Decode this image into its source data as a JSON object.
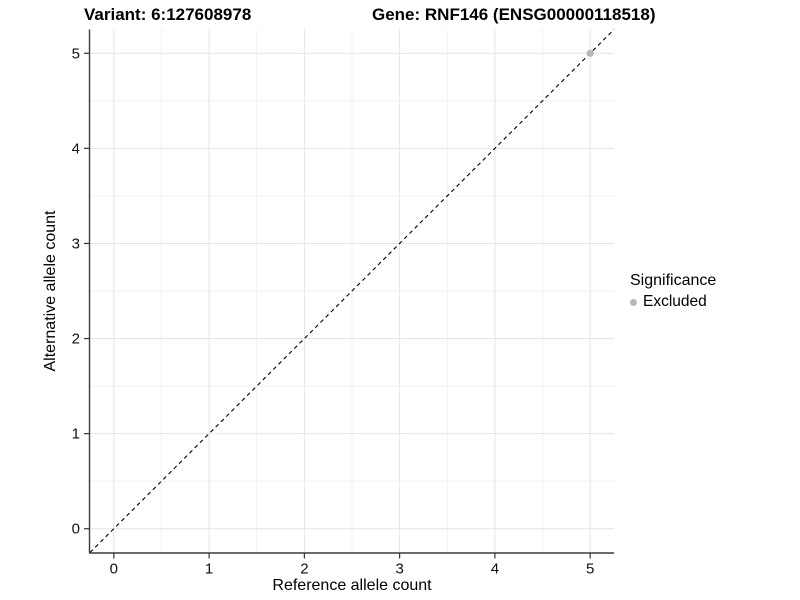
{
  "figure": {
    "title_variant": "Variant: 6:127608978",
    "title_gene": "Gene: RNF146 (ENSG00000118518)"
  },
  "chart_data": {
    "type": "scatter",
    "title": "Variant: 6:127608978  /  Gene: RNF146 (ENSG00000118518)",
    "xlabel": "Reference allele count",
    "ylabel": "Alternative allele count",
    "xlim": [
      -0.25,
      5.25
    ],
    "ylim": [
      -0.25,
      5.25
    ],
    "x_ticks": [
      0,
      1,
      2,
      3,
      4,
      5
    ],
    "y_ticks": [
      0,
      1,
      2,
      3,
      4,
      5
    ],
    "minor_gridlines_x": [
      0.5,
      1.5,
      2.5,
      3.5,
      4.5
    ],
    "minor_gridlines_y": [
      0.5,
      1.5,
      2.5,
      3.5,
      4.5
    ],
    "grid": "major and minor, light gray on white panel",
    "reference_line": {
      "equation": "y = x",
      "style": "dashed",
      "color": "#000000",
      "from": [
        -0.25,
        -0.25
      ],
      "to": [
        5.25,
        5.25
      ]
    },
    "series": [
      {
        "name": "Excluded",
        "color": "#b8b8b8",
        "marker": "circle",
        "points": [
          [
            5,
            5
          ]
        ]
      }
    ],
    "legend": {
      "title": "Significance",
      "position": "right",
      "items": [
        {
          "label": "Excluded",
          "color": "#b8b8b8",
          "marker": "circle"
        }
      ]
    },
    "colors": {
      "grid_major": "#e4e4e4",
      "grid_minor": "#f1f1f1",
      "axis_line": "#3c3c3c",
      "tick_mark": "#333333",
      "tick_label": "#111111",
      "panel_bg": "#ffffff"
    }
  }
}
